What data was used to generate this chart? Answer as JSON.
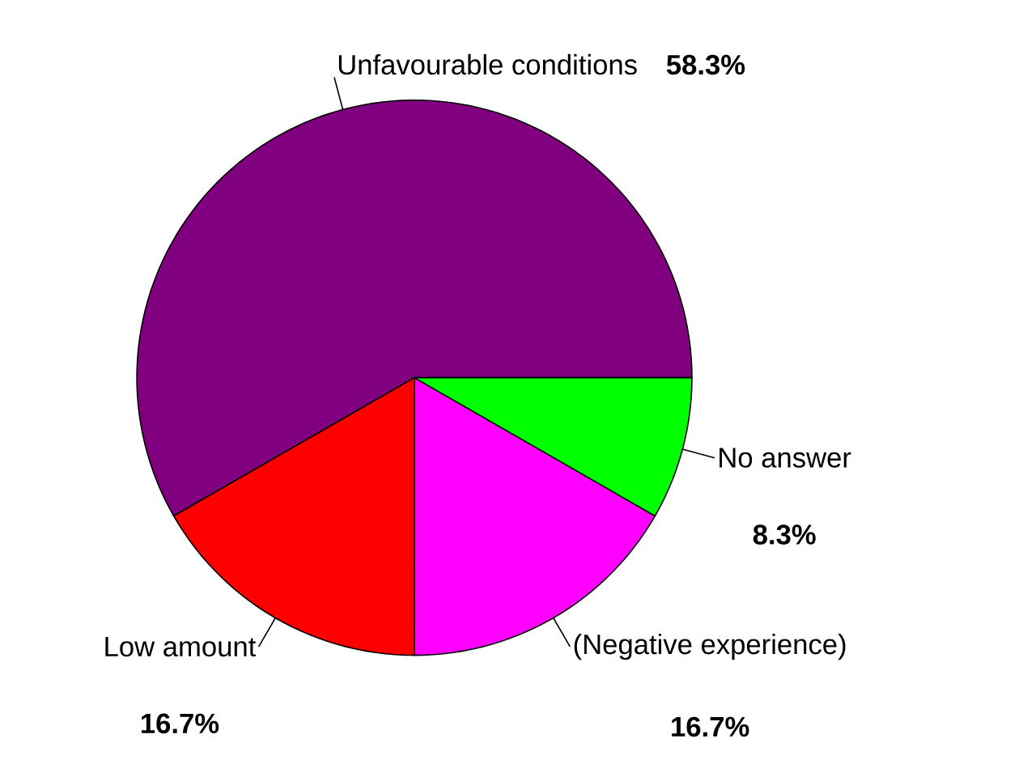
{
  "chart_data": {
    "type": "pie",
    "categories": [
      "Unfavourable conditions",
      "Low amount",
      "(Negative experience)",
      "No answer"
    ],
    "values": [
      58.3,
      16.7,
      16.7,
      8.3
    ],
    "value_labels": [
      "58.3%",
      "16.7%",
      "16.7%",
      "8.3%"
    ],
    "colors": [
      "#800080",
      "#ff0000",
      "#ff00ff",
      "#00ff00"
    ]
  }
}
